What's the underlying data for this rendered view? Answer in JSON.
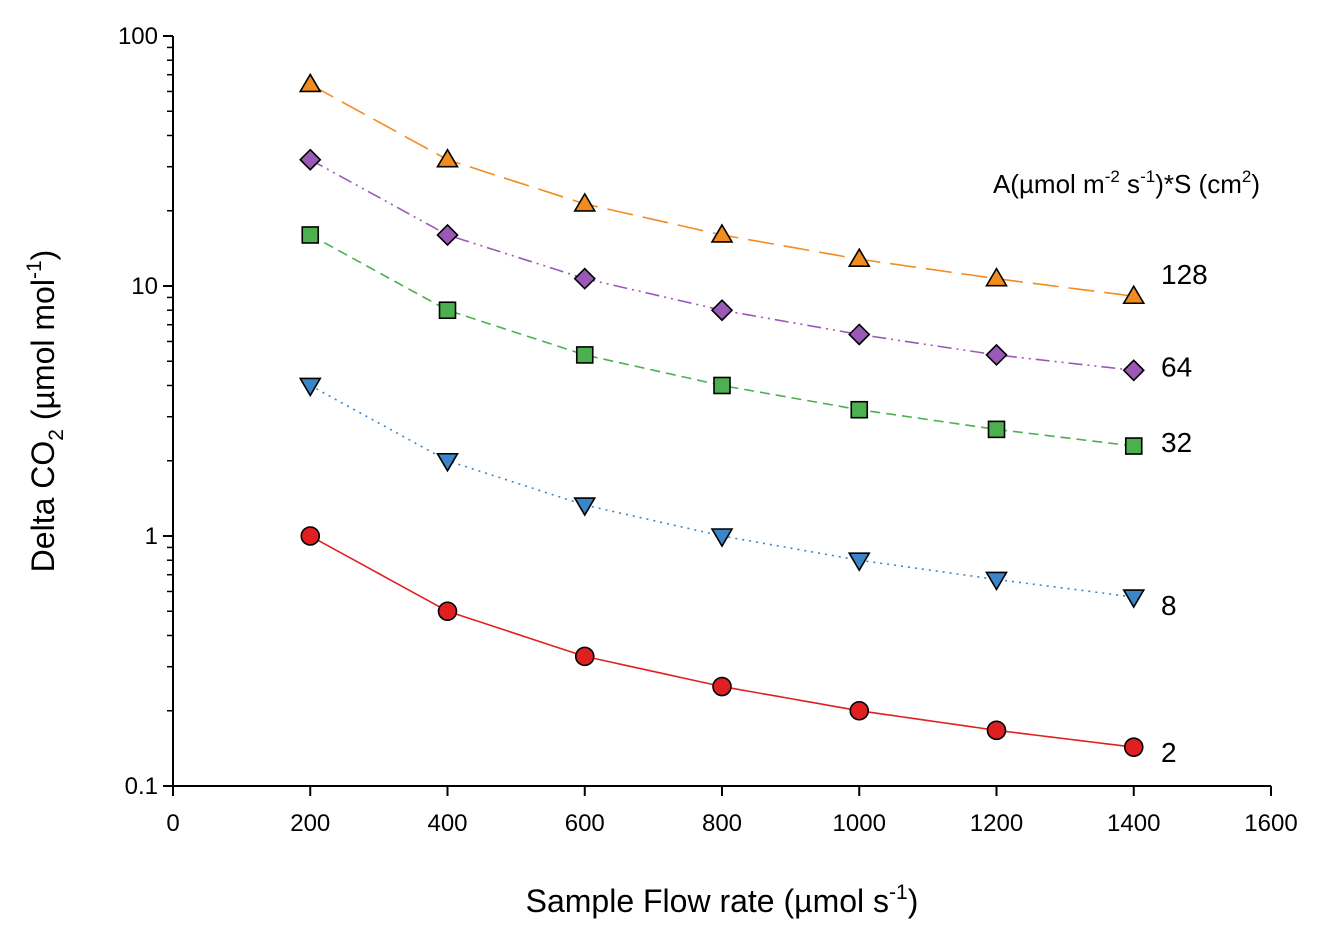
{
  "chart_data": {
    "type": "line",
    "x_label": {
      "main": "Sample Flow rate (µmol s",
      "sup": "-1",
      "tail": ")"
    },
    "y_label": {
      "main": "Delta CO",
      "sub": "2",
      "mid": " (µmol mol",
      "sup": "-1",
      "tail": ")"
    },
    "legend_title": {
      "p1": "A(µmol m",
      "s1": "-2",
      "p2": " s",
      "s2": "-1",
      "p3": ")*S (cm",
      "s3": "2",
      "p4": ")"
    },
    "x_range": [
      0,
      1600
    ],
    "x_ticks": [
      "0",
      "200",
      "400",
      "600",
      "800",
      "1000",
      "1200",
      "1400",
      "1600"
    ],
    "y_scale": "log",
    "y_range": [
      0.1,
      100
    ],
    "y_ticks": [
      "0.1",
      "1",
      "10",
      "100"
    ],
    "x": [
      200,
      400,
      600,
      800,
      1000,
      1200,
      1400
    ],
    "series": [
      {
        "name": "128",
        "color": "#F28C1E",
        "marker": "triangle-up",
        "line_style": "long-dash",
        "values": [
          64,
          32,
          21.3,
          16,
          12.8,
          10.7,
          9.1
        ]
      },
      {
        "name": "64",
        "color": "#9B59B6",
        "marker": "diamond",
        "line_style": "dash-dot-dot",
        "values": [
          32,
          16,
          10.7,
          8,
          6.4,
          5.3,
          4.6
        ]
      },
      {
        "name": "32",
        "color": "#4CAF50",
        "marker": "square",
        "line_style": "dash",
        "values": [
          16,
          8,
          5.3,
          4,
          3.2,
          2.67,
          2.29
        ]
      },
      {
        "name": "8",
        "color": "#3A86C8",
        "marker": "triangle-down",
        "line_style": "dotted",
        "values": [
          4,
          2,
          1.33,
          1,
          0.8,
          0.67,
          0.57
        ]
      },
      {
        "name": "2",
        "color": "#E02020",
        "marker": "circle",
        "line_style": "solid",
        "values": [
          1,
          0.5,
          0.33,
          0.25,
          0.2,
          0.167,
          0.143
        ]
      }
    ]
  }
}
